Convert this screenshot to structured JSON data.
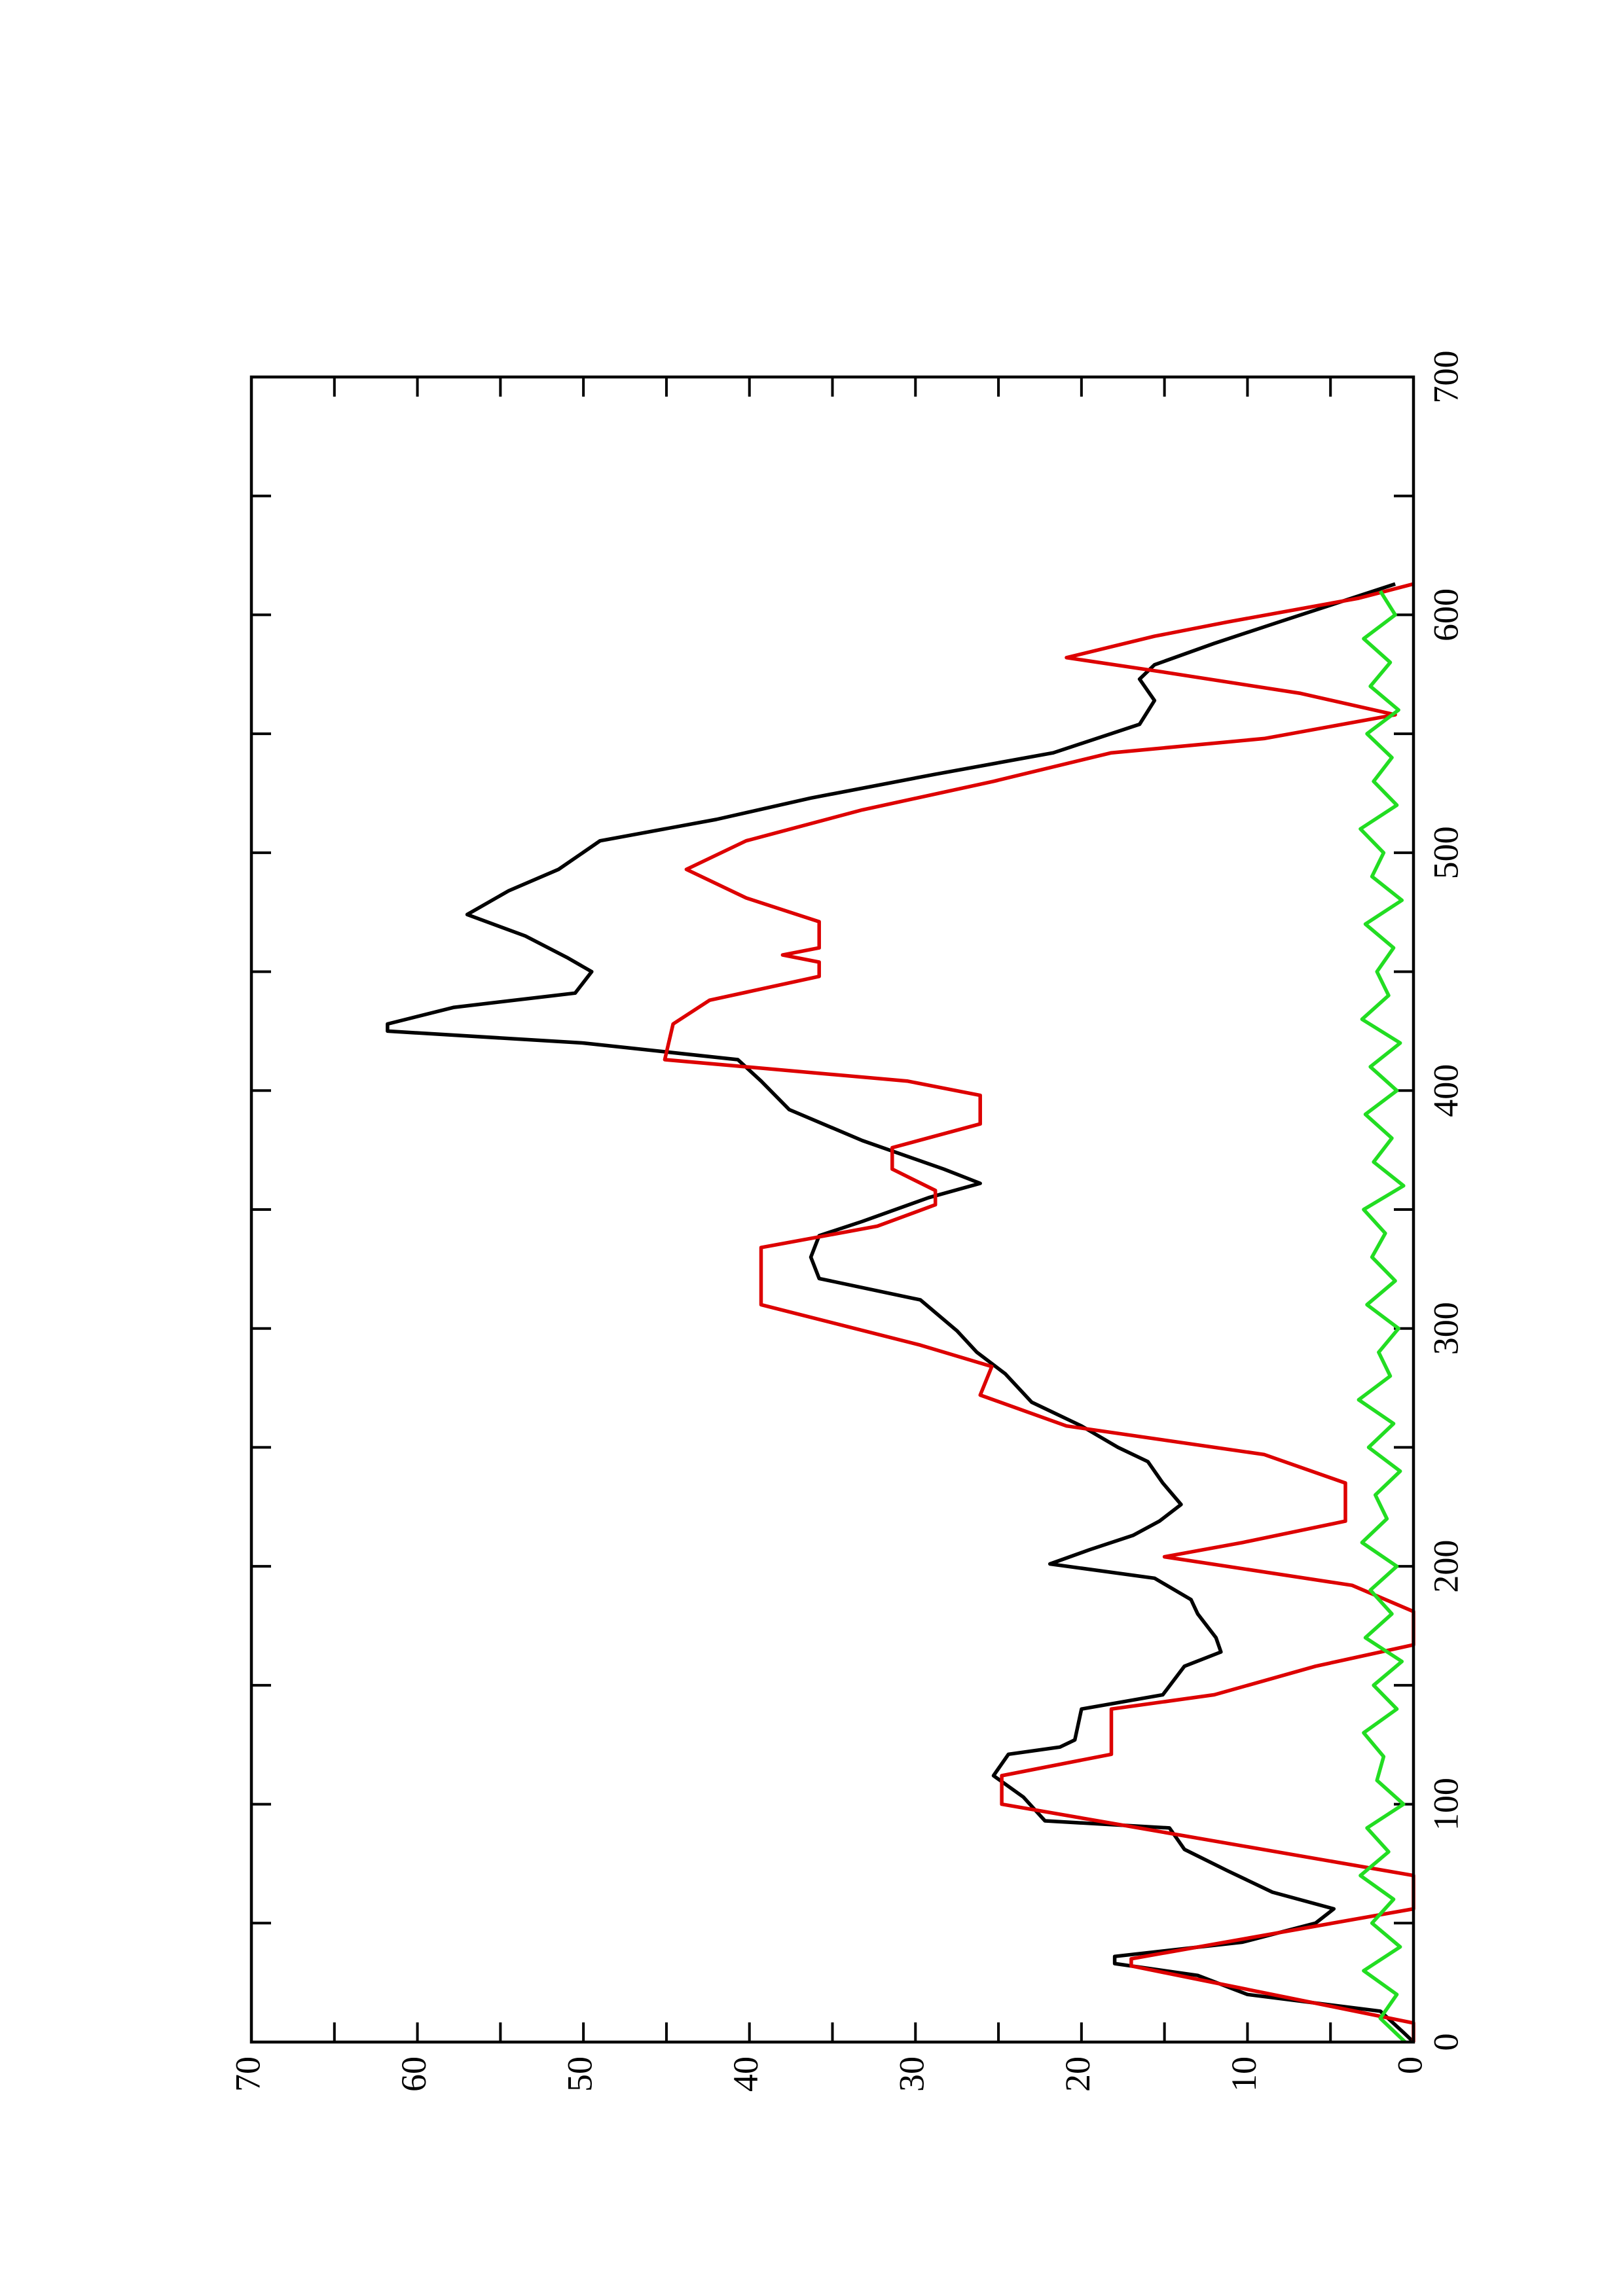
{
  "chart_data": {
    "type": "line",
    "xlim": [
      0,
      700
    ],
    "xticks": [
      0,
      100,
      200,
      300,
      400,
      500,
      600,
      700
    ],
    "xminorticks": [
      50,
      150,
      250,
      350,
      450,
      550,
      650
    ],
    "ylim": [
      0,
      70
    ],
    "yticks": [
      0,
      10,
      20,
      30,
      40,
      50,
      60,
      70
    ],
    "yminorticks": [
      5,
      15,
      25,
      35,
      45,
      55,
      65
    ],
    "rotated": true,
    "series": [
      {
        "color": "#000000",
        "x": [
          0,
          4,
          13,
          20,
          28,
          33,
          36,
          42,
          50,
          56,
          63,
          72,
          81,
          90,
          93,
          103,
          112,
          121,
          124,
          127,
          140,
          146,
          158,
          164,
          170,
          180,
          186,
          195,
          201,
          207,
          213,
          219,
          226,
          235,
          244,
          250,
          259,
          269,
          281,
          290,
          299,
          312,
          321,
          330,
          339,
          345,
          355,
          361,
          367,
          379,
          392,
          404,
          413,
          420,
          425,
          428,
          435,
          441,
          450,
          456,
          465,
          474,
          484,
          493,
          505,
          514,
          523,
          533,
          542,
          554,
          564,
          573,
          579,
          588,
          597,
          605,
          613
        ],
        "values": [
          0,
          0.6,
          2,
          10,
          13,
          18,
          18,
          10.3,
          5.9,
          4.8,
          8.5,
          11.2,
          13.8,
          14.7,
          22.2,
          23.5,
          25.3,
          24.4,
          21.3,
          20.4,
          20,
          15.1,
          13.8,
          11.6,
          11.9,
          13,
          13.4,
          15.6,
          21.9,
          19.5,
          16.9,
          15.3,
          14,
          15.1,
          16,
          17.8,
          20,
          23,
          24.6,
          26.3,
          27.5,
          29.7,
          35.8,
          36.3,
          35.8,
          33.2,
          29.2,
          26.1,
          28.3,
          33.2,
          37.6,
          39.3,
          40.7,
          50,
          61.8,
          61.8,
          57.8,
          50.5,
          49.5,
          51,
          53.5,
          57,
          54.5,
          51.5,
          49,
          42,
          36.3,
          28.8,
          21.7,
          16.5,
          15.6,
          16.5,
          15.6,
          12,
          8.1,
          4.6,
          1.1
        ]
      },
      {
        "color": "#dd0000",
        "x": [
          0,
          8,
          32,
          35,
          56,
          70,
          100,
          112,
          121,
          140,
          146,
          158,
          167,
          181,
          192,
          204,
          210,
          219,
          235,
          247,
          259,
          272,
          284,
          293,
          310,
          334,
          343,
          352,
          358,
          367,
          376,
          386,
          398,
          404,
          413,
          428,
          438,
          448,
          454,
          457,
          460,
          471,
          481,
          493,
          505,
          518,
          530,
          542,
          548,
          558,
          567,
          576,
          582,
          591,
          597,
          607,
          613
        ],
        "values": [
          0,
          0,
          17,
          17,
          0,
          0,
          24.8,
          24.8,
          18.2,
          18.2,
          12,
          5.9,
          0,
          0,
          3.7,
          15,
          10.3,
          4.1,
          4.1,
          9,
          20.9,
          26.1,
          25.4,
          29.7,
          39.3,
          39.3,
          32.3,
          28.8,
          28.8,
          31.4,
          31.4,
          26.1,
          26.1,
          30.5,
          45.1,
          44.6,
          42.4,
          35.8,
          35.8,
          38,
          35.8,
          35.8,
          40.2,
          43.8,
          40.2,
          33.2,
          25.3,
          18.2,
          9,
          1.1,
          6.8,
          15.1,
          20.9,
          15.6,
          11.2,
          3.3,
          0
        ]
      },
      {
        "color": "#22dd22",
        "x": [
          0,
          10,
          20,
          30,
          40,
          50,
          60,
          70,
          80,
          90,
          100,
          110,
          120,
          130,
          140,
          150,
          160,
          170,
          180,
          190,
          200,
          210,
          220,
          230,
          240,
          250,
          260,
          270,
          280,
          290,
          300,
          310,
          320,
          330,
          340,
          350,
          360,
          370,
          380,
          390,
          400,
          410,
          420,
          430,
          440,
          450,
          460,
          470,
          480,
          490,
          500,
          510,
          520,
          530,
          540,
          550,
          560,
          570,
          580,
          590,
          600,
          610
        ],
        "values": [
          0.5,
          2,
          1,
          3,
          0.8,
          2.5,
          1.2,
          3.2,
          1.5,
          2.8,
          0.6,
          2.2,
          1.8,
          3,
          1,
          2.4,
          0.7,
          2.9,
          1.3,
          2.6,
          1,
          3.1,
          1.6,
          2.3,
          0.8,
          2.7,
          1.2,
          3.3,
          1.4,
          2.1,
          0.9,
          2.8,
          1.1,
          2.5,
          1.7,
          3,
          0.6,
          2.4,
          1.3,
          2.9,
          1,
          2.6,
          0.8,
          3.1,
          1.5,
          2.2,
          1.2,
          2.9,
          0.7,
          2.5,
          1.8,
          3.2,
          1,
          2.4,
          1.3,
          2.8,
          0.9,
          2.6,
          1.4,
          3,
          1.1,
          2
        ]
      }
    ]
  }
}
